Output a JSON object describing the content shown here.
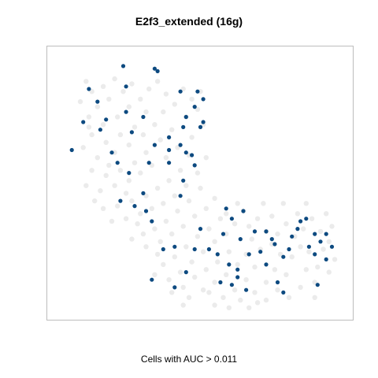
{
  "chart_data": {
    "type": "scatter",
    "title": "E2f3_extended (16g)",
    "xlabel": "Cells with AUC > 0.011",
    "ylabel": "",
    "axes_ticks": "none",
    "grid": false,
    "colors": {
      "background_cells": "#ebebeb",
      "high_auc_cells": "#0d4a80",
      "frame": "#bdbdbd"
    },
    "series": [
      {
        "role": "background",
        "points": [
          [
            0.1,
            0.1
          ],
          [
            0.12,
            0.14
          ],
          [
            0.16,
            0.12
          ],
          [
            0.2,
            0.09
          ],
          [
            0.08,
            0.18
          ],
          [
            0.14,
            0.2
          ],
          [
            0.18,
            0.17
          ],
          [
            0.23,
            0.14
          ],
          [
            0.26,
            0.11
          ],
          [
            0.11,
            0.24
          ],
          [
            0.16,
            0.27
          ],
          [
            0.21,
            0.24
          ],
          [
            0.25,
            0.2
          ],
          [
            0.29,
            0.17
          ],
          [
            0.32,
            0.13
          ],
          [
            0.35,
            0.1
          ],
          [
            0.38,
            0.15
          ],
          [
            0.31,
            0.22
          ],
          [
            0.27,
            0.28
          ],
          [
            0.22,
            0.31
          ],
          [
            0.17,
            0.34
          ],
          [
            0.12,
            0.31
          ],
          [
            0.09,
            0.36
          ],
          [
            0.14,
            0.4
          ],
          [
            0.2,
            0.38
          ],
          [
            0.25,
            0.35
          ],
          [
            0.3,
            0.31
          ],
          [
            0.34,
            0.27
          ],
          [
            0.37,
            0.22
          ],
          [
            0.41,
            0.19
          ],
          [
            0.44,
            0.13
          ],
          [
            0.47,
            0.17
          ],
          [
            0.5,
            0.14
          ],
          [
            0.45,
            0.24
          ],
          [
            0.4,
            0.29
          ],
          [
            0.36,
            0.33
          ],
          [
            0.31,
            0.38
          ],
          [
            0.27,
            0.42
          ],
          [
            0.22,
            0.45
          ],
          [
            0.17,
            0.47
          ],
          [
            0.12,
            0.45
          ],
          [
            0.1,
            0.51
          ],
          [
            0.15,
            0.53
          ],
          [
            0.2,
            0.51
          ],
          [
            0.25,
            0.49
          ],
          [
            0.29,
            0.46
          ],
          [
            0.33,
            0.43
          ],
          [
            0.38,
            0.4
          ],
          [
            0.42,
            0.36
          ],
          [
            0.47,
            0.32
          ],
          [
            0.51,
            0.27
          ],
          [
            0.49,
            0.21
          ],
          [
            0.46,
            0.39
          ],
          [
            0.43,
            0.45
          ],
          [
            0.39,
            0.49
          ],
          [
            0.35,
            0.52
          ],
          [
            0.31,
            0.55
          ],
          [
            0.26,
            0.57
          ],
          [
            0.21,
            0.59
          ],
          [
            0.16,
            0.6
          ],
          [
            0.13,
            0.57
          ],
          [
            0.19,
            0.65
          ],
          [
            0.24,
            0.64
          ],
          [
            0.29,
            0.62
          ],
          [
            0.33,
            0.6
          ],
          [
            0.37,
            0.58
          ],
          [
            0.41,
            0.55
          ],
          [
            0.45,
            0.51
          ],
          [
            0.49,
            0.46
          ],
          [
            0.52,
            0.4
          ],
          [
            0.5,
            0.52
          ],
          [
            0.46,
            0.57
          ],
          [
            0.42,
            0.61
          ],
          [
            0.38,
            0.65
          ],
          [
            0.34,
            0.68
          ],
          [
            0.3,
            0.7
          ],
          [
            0.26,
            0.72
          ],
          [
            0.31,
            0.75
          ],
          [
            0.36,
            0.73
          ],
          [
            0.4,
            0.7
          ],
          [
            0.44,
            0.67
          ],
          [
            0.48,
            0.63
          ],
          [
            0.52,
            0.6
          ],
          [
            0.55,
            0.56
          ],
          [
            0.57,
            0.64
          ],
          [
            0.53,
            0.68
          ],
          [
            0.49,
            0.71
          ],
          [
            0.45,
            0.75
          ],
          [
            0.41,
            0.79
          ],
          [
            0.37,
            0.82
          ],
          [
            0.34,
            0.86
          ],
          [
            0.39,
            0.88
          ],
          [
            0.43,
            0.85
          ],
          [
            0.47,
            0.81
          ],
          [
            0.51,
            0.77
          ],
          [
            0.55,
            0.73
          ],
          [
            0.59,
            0.7
          ],
          [
            0.62,
            0.66
          ],
          [
            0.6,
            0.77
          ],
          [
            0.56,
            0.81
          ],
          [
            0.52,
            0.84
          ],
          [
            0.48,
            0.87
          ],
          [
            0.44,
            0.91
          ],
          [
            0.4,
            0.93
          ],
          [
            0.46,
            0.95
          ],
          [
            0.51,
            0.92
          ],
          [
            0.55,
            0.89
          ],
          [
            0.59,
            0.86
          ],
          [
            0.63,
            0.82
          ],
          [
            0.66,
            0.78
          ],
          [
            0.68,
            0.72
          ],
          [
            0.65,
            0.61
          ],
          [
            0.7,
            0.64
          ],
          [
            0.73,
            0.69
          ],
          [
            0.71,
            0.76
          ],
          [
            0.69,
            0.83
          ],
          [
            0.66,
            0.88
          ],
          [
            0.62,
            0.92
          ],
          [
            0.58,
            0.95
          ],
          [
            0.64,
            0.96
          ],
          [
            0.69,
            0.93
          ],
          [
            0.73,
            0.89
          ],
          [
            0.76,
            0.84
          ],
          [
            0.78,
            0.78
          ],
          [
            0.77,
            0.7
          ],
          [
            0.75,
            0.63
          ],
          [
            0.8,
            0.66
          ],
          [
            0.83,
            0.71
          ],
          [
            0.82,
            0.79
          ],
          [
            0.8,
            0.86
          ],
          [
            0.77,
            0.92
          ],
          [
            0.73,
            0.96
          ],
          [
            0.81,
            0.95
          ],
          [
            0.85,
            0.91
          ],
          [
            0.87,
            0.84
          ],
          [
            0.88,
            0.77
          ],
          [
            0.86,
            0.68
          ],
          [
            0.84,
            0.62
          ],
          [
            0.89,
            0.64
          ],
          [
            0.92,
            0.69
          ],
          [
            0.93,
            0.76
          ],
          [
            0.91,
            0.83
          ],
          [
            0.9,
            0.89
          ],
          [
            0.95,
            0.73
          ],
          [
            0.96,
            0.67
          ],
          [
            0.94,
            0.62
          ],
          [
            0.97,
            0.8
          ],
          [
            0.59,
            0.62
          ],
          [
            0.63,
            0.58
          ],
          [
            0.67,
            0.67
          ],
          [
            0.72,
            0.58
          ],
          [
            0.79,
            0.58
          ],
          [
            0.87,
            0.58
          ],
          [
            0.95,
            0.85
          ],
          [
            0.55,
            0.98
          ],
          [
            0.6,
            0.99
          ],
          [
            0.67,
            0.99
          ],
          [
            0.44,
            0.98
          ],
          [
            0.11,
            0.28
          ],
          [
            0.18,
            0.43
          ],
          [
            0.24,
            0.54
          ],
          [
            0.28,
            0.66
          ],
          [
            0.35,
            0.78
          ],
          [
            0.53,
            0.93
          ],
          [
            0.75,
            0.74
          ],
          [
            0.85,
            0.75
          ],
          [
            0.9,
            0.95
          ],
          [
            0.7,
            0.97
          ]
        ]
      },
      {
        "role": "highlight",
        "label": "Cells with AUC > 0.011",
        "points": [
          [
            0.23,
            0.04
          ],
          [
            0.34,
            0.05
          ],
          [
            0.35,
            0.06
          ],
          [
            0.11,
            0.13
          ],
          [
            0.24,
            0.12
          ],
          [
            0.43,
            0.14
          ],
          [
            0.49,
            0.14
          ],
          [
            0.51,
            0.17
          ],
          [
            0.14,
            0.18
          ],
          [
            0.48,
            0.2
          ],
          [
            0.09,
            0.26
          ],
          [
            0.24,
            0.22
          ],
          [
            0.17,
            0.25
          ],
          [
            0.3,
            0.24
          ],
          [
            0.45,
            0.24
          ],
          [
            0.51,
            0.26
          ],
          [
            0.15,
            0.29
          ],
          [
            0.26,
            0.3
          ],
          [
            0.5,
            0.28
          ],
          [
            0.44,
            0.28
          ],
          [
            0.39,
            0.32
          ],
          [
            0.34,
            0.35
          ],
          [
            0.43,
            0.35
          ],
          [
            0.39,
            0.37
          ],
          [
            0.05,
            0.37
          ],
          [
            0.19,
            0.38
          ],
          [
            0.45,
            0.38
          ],
          [
            0.21,
            0.42
          ],
          [
            0.32,
            0.42
          ],
          [
            0.39,
            0.42
          ],
          [
            0.47,
            0.39
          ],
          [
            0.48,
            0.43
          ],
          [
            0.25,
            0.46
          ],
          [
            0.44,
            0.49
          ],
          [
            0.3,
            0.54
          ],
          [
            0.43,
            0.55
          ],
          [
            0.22,
            0.57
          ],
          [
            0.27,
            0.59
          ],
          [
            0.31,
            0.61
          ],
          [
            0.33,
            0.65
          ],
          [
            0.59,
            0.6
          ],
          [
            0.65,
            0.61
          ],
          [
            0.61,
            0.64
          ],
          [
            0.5,
            0.68
          ],
          [
            0.69,
            0.69
          ],
          [
            0.73,
            0.69
          ],
          [
            0.82,
            0.71
          ],
          [
            0.84,
            0.68
          ],
          [
            0.85,
            0.65
          ],
          [
            0.87,
            0.64
          ],
          [
            0.9,
            0.7
          ],
          [
            0.94,
            0.7
          ],
          [
            0.58,
            0.7
          ],
          [
            0.64,
            0.72
          ],
          [
            0.75,
            0.72
          ],
          [
            0.76,
            0.74
          ],
          [
            0.81,
            0.76
          ],
          [
            0.88,
            0.75
          ],
          [
            0.92,
            0.73
          ],
          [
            0.96,
            0.75
          ],
          [
            0.41,
            0.75
          ],
          [
            0.37,
            0.76
          ],
          [
            0.48,
            0.76
          ],
          [
            0.53,
            0.76
          ],
          [
            0.56,
            0.78
          ],
          [
            0.67,
            0.78
          ],
          [
            0.71,
            0.77
          ],
          [
            0.79,
            0.79
          ],
          [
            0.6,
            0.82
          ],
          [
            0.63,
            0.84
          ],
          [
            0.73,
            0.82
          ],
          [
            0.9,
            0.78
          ],
          [
            0.94,
            0.8
          ],
          [
            0.45,
            0.85
          ],
          [
            0.63,
            0.87
          ],
          [
            0.61,
            0.9
          ],
          [
            0.77,
            0.89
          ],
          [
            0.66,
            0.92
          ],
          [
            0.79,
            0.93
          ],
          [
            0.33,
            0.88
          ],
          [
            0.41,
            0.91
          ],
          [
            0.57,
            0.89
          ],
          [
            0.91,
            0.9
          ]
        ]
      }
    ]
  }
}
